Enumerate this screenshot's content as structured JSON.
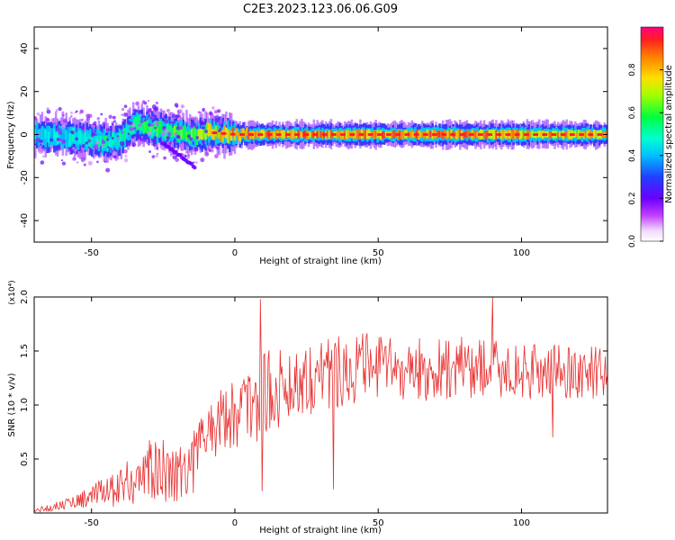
{
  "title": "C2E3.2023.123.06.06.G09",
  "chart_data": [
    {
      "type": "heatmap",
      "title": "C2E3.2023.123.06.06.G09",
      "xlabel": "Height of straight line (km)",
      "ylabel": "Frequency (Hz)",
      "xlim": [
        -70,
        130
      ],
      "ylim": [
        -50,
        50
      ],
      "xticks": [
        -50,
        0,
        50,
        100
      ],
      "xtick_labels": [
        "-50",
        "0",
        "50",
        "100"
      ],
      "yticks": [
        -40,
        -20,
        0,
        20,
        40
      ],
      "ytick_labels": [
        "-40",
        "-20",
        "0",
        "20",
        "40"
      ],
      "colorbar": {
        "label": "Normalized spectral amplitude",
        "range": [
          0,
          1
        ],
        "ticks": [
          0.0,
          0.2,
          0.4,
          0.6,
          0.8
        ],
        "tick_labels": [
          "0.0",
          "0.2",
          "0.4",
          "0.6",
          "0.8"
        ],
        "colormap": "rainbow (white-magenta-purple-blue-cyan-green-yellow-orange-red)"
      },
      "ridge": {
        "description": "main spectral ridge near 0 Hz",
        "x": [
          -70,
          -60,
          -50,
          -45,
          -40,
          -35,
          -30,
          -25,
          -20,
          -15,
          -10,
          0,
          20,
          40,
          60,
          80,
          100,
          120,
          130
        ],
        "frequency": [
          0,
          -1,
          -2,
          -4,
          -2,
          5,
          3,
          2,
          1,
          -1,
          1,
          0,
          0,
          0,
          0,
          0,
          0,
          0,
          0
        ],
        "amplitude": [
          0.5,
          0.5,
          0.55,
          0.55,
          0.55,
          0.6,
          0.65,
          0.65,
          0.7,
          0.7,
          0.8,
          0.95,
          0.95,
          0.95,
          0.95,
          0.95,
          0.9,
          0.9,
          0.9
        ]
      }
    },
    {
      "type": "line",
      "title": "",
      "xlabel": "Height of straight line (km)",
      "ylabel": "SNR (10 * v/v)",
      "y_scale_note": "(x10⁴)",
      "xlim": [
        -70,
        130
      ],
      "ylim": [
        0,
        2.0
      ],
      "xticks": [
        -50,
        0,
        50,
        100
      ],
      "xtick_labels": [
        "-50",
        "0",
        "50",
        "100"
      ],
      "yticks": [
        0.5,
        1.0,
        1.5,
        2.0
      ],
      "ytick_labels": [
        "0.5",
        "1.0",
        "1.5",
        "2.0"
      ],
      "series": [
        {
          "name": "SNR",
          "color": "#e83030",
          "envelope_x": [
            -70,
            -60,
            -50,
            -40,
            -30,
            -20,
            -15,
            -10,
            -5,
            0,
            5,
            10,
            20,
            30,
            40,
            50,
            60,
            70,
            80,
            90,
            100,
            110,
            120,
            130
          ],
          "envelope_mean": [
            0.02,
            0.08,
            0.15,
            0.25,
            0.38,
            0.4,
            0.45,
            0.75,
            0.85,
            0.95,
            1.0,
            1.1,
            1.2,
            1.3,
            1.35,
            1.35,
            1.32,
            1.32,
            1.35,
            1.35,
            1.3,
            1.32,
            1.3,
            1.3
          ],
          "envelope_spread": [
            0.02,
            0.05,
            0.1,
            0.2,
            0.3,
            0.3,
            0.3,
            0.3,
            0.3,
            0.35,
            0.4,
            0.4,
            0.35,
            0.35,
            0.35,
            0.3,
            0.3,
            0.3,
            0.3,
            0.3,
            0.25,
            0.25,
            0.25,
            0.25
          ],
          "spikes": [
            {
              "x": 9,
              "y": 1.98
            },
            {
              "x": 9.5,
              "y": 0.2
            },
            {
              "x": 34.5,
              "y": 0.22
            },
            {
              "x": 90,
              "y": 2.0
            },
            {
              "x": 111,
              "y": 0.7
            }
          ]
        }
      ]
    }
  ]
}
